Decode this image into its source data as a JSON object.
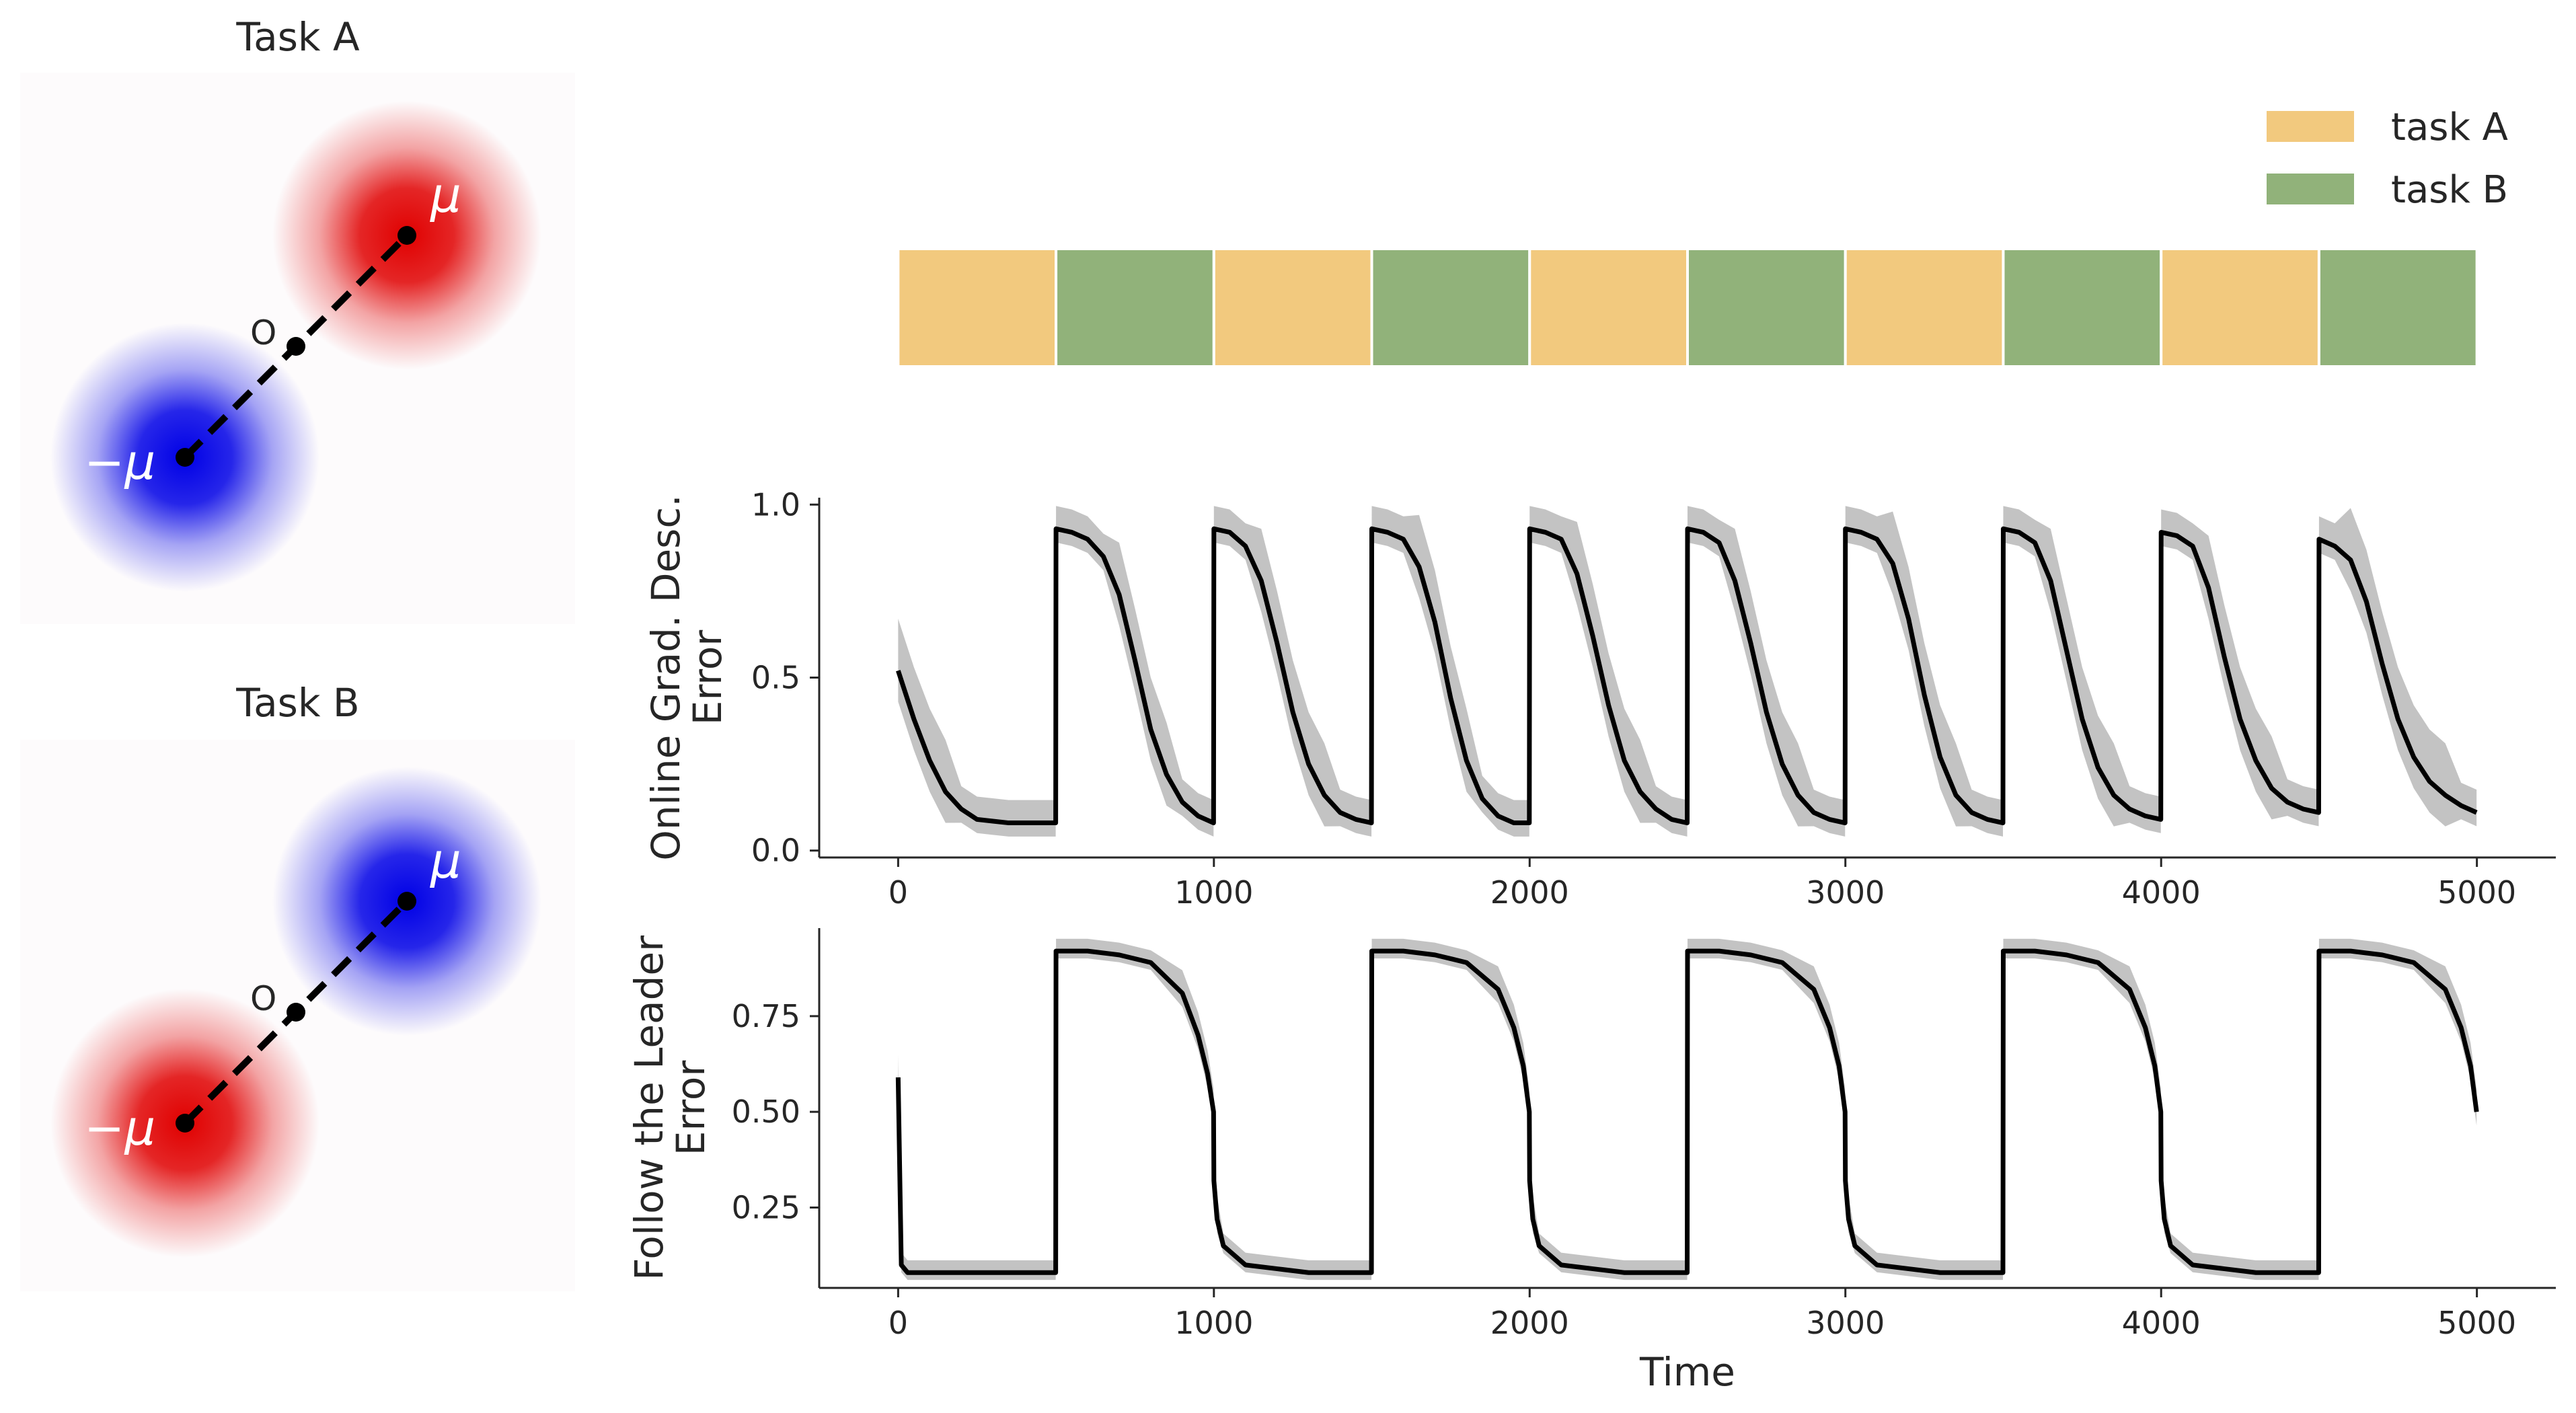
{
  "colors": {
    "task_a": "#f2c97e",
    "task_b": "#91b27a",
    "mean_line": "#000000",
    "band": "#b8b8b8",
    "red": "#e00000",
    "blue": "#0000e6"
  },
  "panels": {
    "task_a": {
      "title": "Task A",
      "mu_label": "μ",
      "neg_mu_label": "−μ",
      "origin_label": "O",
      "mu_color": "red",
      "neg_mu_color": "blue"
    },
    "task_b": {
      "title": "Task B",
      "mu_label": "μ",
      "neg_mu_label": "−μ",
      "origin_label": "O",
      "mu_color": "blue",
      "neg_mu_color": "red"
    }
  },
  "legend": {
    "items": [
      {
        "label": "task A",
        "color": "#f2c97e"
      },
      {
        "label": "task B",
        "color": "#91b27a"
      }
    ],
    "placement": "top-right"
  },
  "schedule": {
    "segments": [
      "A",
      "B",
      "A",
      "B",
      "A",
      "B",
      "A",
      "B",
      "A",
      "B"
    ],
    "x_range": [
      0,
      5000
    ]
  },
  "chart_data": [
    {
      "type": "line",
      "ylabel_lines": [
        "Online Grad. Desc.",
        "Error"
      ],
      "xlabel": "",
      "xlim": [
        -250,
        5250
      ],
      "ylim": [
        -0.02,
        1.02
      ],
      "xticks": [
        0,
        1000,
        2000,
        3000,
        4000,
        5000
      ],
      "yticks": [
        "0.0",
        "0.5",
        "1.0"
      ],
      "ytick_values": [
        0.0,
        0.5,
        1.0
      ],
      "switch_period": 500,
      "series": [
        {
          "x": [
            0,
            50,
            100,
            150,
            200,
            250,
            300,
            350,
            400,
            450,
            499,
            500,
            550,
            600,
            650,
            700,
            750,
            800,
            850,
            900,
            950,
            999
          ],
          "y_by_cycle": [
            [
              0.52,
              0.38,
              0.26,
              0.17,
              0.12,
              0.09,
              0.085,
              0.08,
              0.08,
              0.08,
              0.08
            ],
            [
              0.93,
              0.92,
              0.9,
              0.85,
              0.74,
              0.55,
              0.35,
              0.22,
              0.14,
              0.1,
              0.08
            ],
            [
              0.93,
              0.92,
              0.88,
              0.78,
              0.6,
              0.4,
              0.25,
              0.16,
              0.11,
              0.09,
              0.08
            ],
            [
              0.93,
              0.92,
              0.9,
              0.82,
              0.66,
              0.44,
              0.26,
              0.15,
              0.1,
              0.08,
              0.08
            ],
            [
              0.93,
              0.92,
              0.9,
              0.8,
              0.62,
              0.42,
              0.26,
              0.17,
              0.12,
              0.09,
              0.08
            ],
            [
              0.93,
              0.92,
              0.89,
              0.78,
              0.6,
              0.4,
              0.25,
              0.16,
              0.11,
              0.09,
              0.08
            ],
            [
              0.93,
              0.92,
              0.9,
              0.83,
              0.67,
              0.45,
              0.27,
              0.16,
              0.11,
              0.09,
              0.08
            ],
            [
              0.93,
              0.92,
              0.89,
              0.78,
              0.58,
              0.38,
              0.24,
              0.16,
              0.12,
              0.1,
              0.09
            ],
            [
              0.92,
              0.91,
              0.88,
              0.76,
              0.56,
              0.38,
              0.26,
              0.18,
              0.14,
              0.12,
              0.11
            ],
            [
              0.9,
              0.88,
              0.84,
              0.72,
              0.54,
              0.38,
              0.27,
              0.2,
              0.16,
              0.13,
              0.11
            ]
          ],
          "band": [
            0.03,
            0.15
          ],
          "name": ""
        }
      ]
    },
    {
      "type": "line",
      "ylabel_lines": [
        "Follow the Leader",
        "Error"
      ],
      "xlabel": "Time",
      "xlim": [
        -250,
        5250
      ],
      "ylim": [
        0.04,
        0.98
      ],
      "xticks": [
        0,
        1000,
        2000,
        3000,
        4000,
        5000
      ],
      "yticks": [
        "0.25",
        "0.50",
        "0.75"
      ],
      "ytick_values": [
        0.25,
        0.5,
        0.75
      ],
      "switch_period": 500,
      "series": [
        {
          "x_by_cycle_offsets": [
            0,
            10,
            30,
            100,
            200,
            300,
            400,
            450,
            480,
            499
          ],
          "y_by_cycle": [
            [
              0.59,
              0.1,
              0.08,
              0.08,
              0.08,
              0.08,
              0.08,
              0.08,
              0.08,
              0.08
            ],
            [
              0.92,
              0.92,
              0.92,
              0.92,
              0.91,
              0.89,
              0.81,
              0.7,
              0.6,
              0.5
            ],
            [
              0.32,
              0.22,
              0.15,
              0.1,
              0.09,
              0.08,
              0.08,
              0.08,
              0.08,
              0.08
            ],
            [
              0.92,
              0.92,
              0.92,
              0.92,
              0.91,
              0.89,
              0.82,
              0.72,
              0.62,
              0.5
            ],
            [
              0.32,
              0.22,
              0.15,
              0.1,
              0.09,
              0.08,
              0.08,
              0.08,
              0.08,
              0.08
            ],
            [
              0.92,
              0.92,
              0.92,
              0.92,
              0.91,
              0.89,
              0.82,
              0.72,
              0.62,
              0.5
            ],
            [
              0.32,
              0.22,
              0.15,
              0.1,
              0.09,
              0.08,
              0.08,
              0.08,
              0.08,
              0.08
            ],
            [
              0.92,
              0.92,
              0.92,
              0.92,
              0.91,
              0.89,
              0.82,
              0.72,
              0.62,
              0.5
            ],
            [
              0.32,
              0.22,
              0.15,
              0.1,
              0.09,
              0.08,
              0.08,
              0.08,
              0.08,
              0.08
            ],
            [
              0.92,
              0.92,
              0.92,
              0.92,
              0.91,
              0.89,
              0.82,
              0.72,
              0.62,
              0.5
            ]
          ],
          "band": [
            0.02,
            0.06
          ],
          "name": ""
        }
      ]
    }
  ]
}
